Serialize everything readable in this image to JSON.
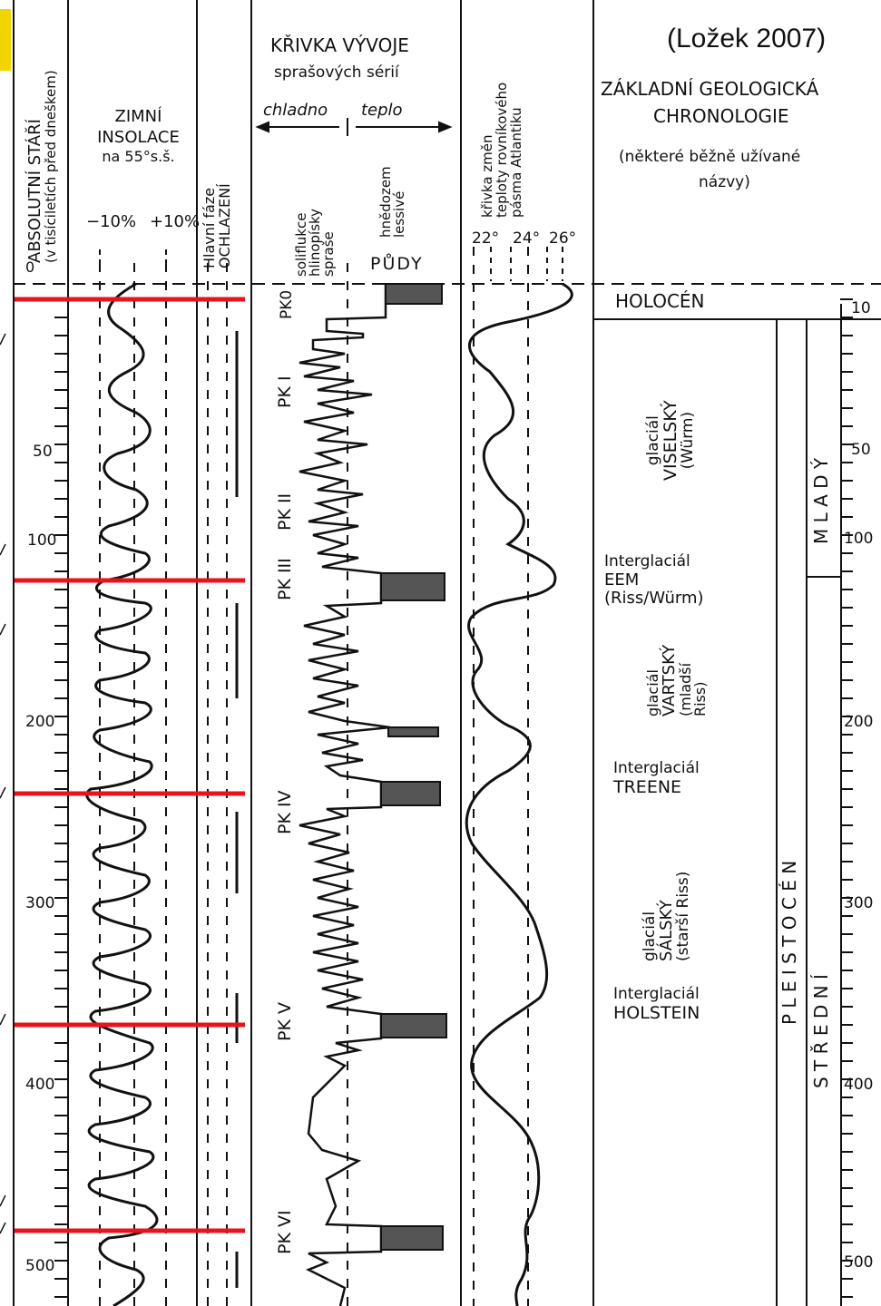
{
  "source_label": "(Ložek 2007)",
  "colors": {
    "ink": "#111111",
    "marker": "#e8141d",
    "accent": "#f2d400"
  },
  "headers": {
    "age": [
      "ABSOLUTNÍ STÁŘÍ",
      "(v tisíciletích před dneškem)"
    ],
    "age_zero": "0",
    "insolation": [
      "ZIMNÍ",
      "INSOLACE",
      "na 55°s.š."
    ],
    "insolation_scale": [
      "−10%",
      "+10%"
    ],
    "cooling": [
      "Hlavní fáze",
      "OCHLAZENÍ"
    ],
    "loess_title": [
      "KŘIVKA VÝVOJE",
      "sprašových sérií"
    ],
    "loess_cold": "chladno",
    "loess_warm": "teplo",
    "loess_sub_left": [
      "soliflukce",
      "hlinopísky",
      "spraše"
    ],
    "loess_sub_right": [
      "hnědozem",
      "lessivé"
    ],
    "soils": "PŮDY",
    "temp_title": [
      "křivka změn",
      "teploty rovníkového",
      "pásma Atlantiku"
    ],
    "temp_scale": [
      "22°",
      "24°",
      "26°"
    ],
    "geo_title": [
      "ZÁKLADNÍ GEOLOGICKÁ",
      "CHRONOLOGIE"
    ],
    "geo_note": [
      "(některé běžně užívané",
      "názvy)"
    ]
  },
  "age_ticks": [
    "50",
    "100",
    "200",
    "300",
    "400",
    "500"
  ],
  "right_ticks": [
    "10",
    "50",
    "100",
    "200",
    "300",
    "400",
    "500"
  ],
  "pk_labels": [
    "PK0",
    "PK I",
    "PK II",
    "PK III",
    "PK IV",
    "PK V",
    "PK VI"
  ],
  "chronology": {
    "holocene": "HOLOCÉN",
    "visel": [
      "glaciál",
      "VISELSKÝ",
      "(Würm)"
    ],
    "eem": [
      "Interglaciál",
      "EEM",
      "(Riss/Würm)"
    ],
    "vart": [
      "glaciál",
      "VARTSKÝ",
      "(mladší",
      "Riss)"
    ],
    "treene": [
      "Interglaciál",
      "TREENE"
    ],
    "sal": [
      "glaciál",
      "SÁLSKÝ",
      "(starší Riss)"
    ],
    "holstein": [
      "Interglaciál",
      "HOLSTEIN"
    ],
    "pleistocene": "P L E I S T O C É N",
    "young": "M L A D Ý",
    "middle": "S T Ř E D N Í"
  }
}
